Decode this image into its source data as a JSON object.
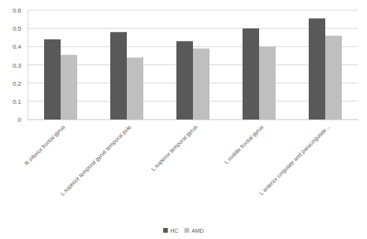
{
  "chart_data": {
    "type": "bar",
    "categories": [
      "R inferior frontal gyrus",
      "L superior temporal gyrus temporal pole",
      "L superior temporal gyrus",
      "L middle frontal gyrus",
      "L anterior cingulate and paracingulate..."
    ],
    "series": [
      {
        "name": "HC",
        "color": "#595959",
        "values": [
          0.44,
          0.48,
          0.43,
          0.5,
          0.555
        ]
      },
      {
        "name": "AMD",
        "color": "#bfbfbf",
        "values": [
          0.355,
          0.34,
          0.39,
          0.4,
          0.46
        ]
      }
    ],
    "ylim": [
      0,
      0.6
    ],
    "yticks": [
      0,
      0.1,
      0.2,
      0.3,
      0.4,
      0.5,
      0.6
    ],
    "grid": true,
    "legend": "bottom"
  }
}
